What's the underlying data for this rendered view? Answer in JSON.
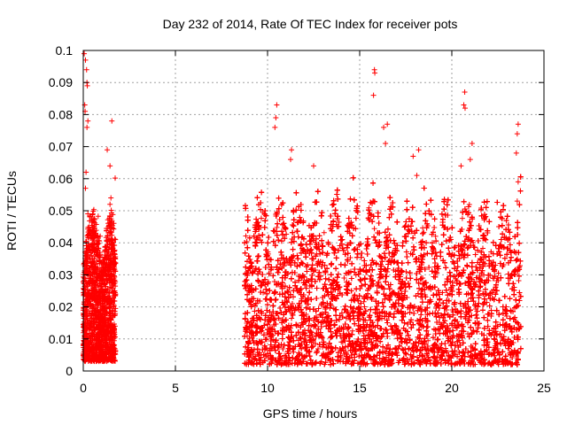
{
  "chart_data": {
    "type": "scatter",
    "title": "Day 232 of 2014, Rate Of TEC Index for receiver pots",
    "xlabel": "GPS time / hours",
    "ylabel": "ROTI / TECUs",
    "xlim": [
      0,
      25
    ],
    "ylim": [
      0,
      0.1
    ],
    "xticks": [
      0,
      5,
      10,
      15,
      20,
      25
    ],
    "xtick_labels": [
      "0",
      "5",
      "10",
      "15",
      "20",
      "25"
    ],
    "yticks": [
      0,
      0.01,
      0.02,
      0.03,
      0.04,
      0.05,
      0.06,
      0.07,
      0.08,
      0.09,
      0.1
    ],
    "ytick_labels": [
      "0",
      "0.01",
      "0.02",
      "0.03",
      "0.04",
      "0.05",
      "0.06",
      "0.07",
      "0.08",
      "0.09",
      "0.1"
    ],
    "grid": true,
    "marker": "+",
    "series_color": "#ff0000",
    "series": [
      {
        "name": "ROTI",
        "segments": [
          {
            "x_range": [
              0.0,
              1.75
            ],
            "typical_max": 0.04,
            "floor": 0.003
          },
          {
            "x_range": [
              8.75,
              23.75
            ],
            "typical_max": 0.045,
            "floor": 0.002
          }
        ],
        "highlights": [
          {
            "x": 0.05,
            "y": 0.099
          },
          {
            "x": 0.12,
            "y": 0.097
          },
          {
            "x": 0.18,
            "y": 0.094
          },
          {
            "x": 0.2,
            "y": 0.09
          },
          {
            "x": 0.22,
            "y": 0.089
          },
          {
            "x": 0.08,
            "y": 0.083
          },
          {
            "x": 0.1,
            "y": 0.081
          },
          {
            "x": 0.25,
            "y": 0.078
          },
          {
            "x": 0.2,
            "y": 0.076
          },
          {
            "x": 0.15,
            "y": 0.062
          },
          {
            "x": 0.12,
            "y": 0.057
          },
          {
            "x": 1.55,
            "y": 0.078
          },
          {
            "x": 1.3,
            "y": 0.069
          },
          {
            "x": 1.45,
            "y": 0.064
          },
          {
            "x": 1.5,
            "y": 0.054
          },
          {
            "x": 1.45,
            "y": 0.052
          },
          {
            "x": 10.5,
            "y": 0.083
          },
          {
            "x": 10.45,
            "y": 0.079
          },
          {
            "x": 10.4,
            "y": 0.076
          },
          {
            "x": 11.3,
            "y": 0.069
          },
          {
            "x": 11.25,
            "y": 0.066
          },
          {
            "x": 12.5,
            "y": 0.064
          },
          {
            "x": 15.8,
            "y": 0.094
          },
          {
            "x": 15.82,
            "y": 0.093
          },
          {
            "x": 15.75,
            "y": 0.086
          },
          {
            "x": 16.3,
            "y": 0.076
          },
          {
            "x": 16.5,
            "y": 0.077
          },
          {
            "x": 16.4,
            "y": 0.071
          },
          {
            "x": 17.9,
            "y": 0.067
          },
          {
            "x": 18.2,
            "y": 0.069
          },
          {
            "x": 18.1,
            "y": 0.061
          },
          {
            "x": 20.7,
            "y": 0.087
          },
          {
            "x": 20.65,
            "y": 0.083
          },
          {
            "x": 20.72,
            "y": 0.082
          },
          {
            "x": 21.1,
            "y": 0.071
          },
          {
            "x": 21.0,
            "y": 0.066
          },
          {
            "x": 20.5,
            "y": 0.064
          },
          {
            "x": 23.6,
            "y": 0.077
          },
          {
            "x": 23.55,
            "y": 0.074
          },
          {
            "x": 23.5,
            "y": 0.068
          },
          {
            "x": 23.6,
            "y": 0.059
          },
          {
            "x": 23.55,
            "y": 0.053
          }
        ]
      }
    ]
  }
}
